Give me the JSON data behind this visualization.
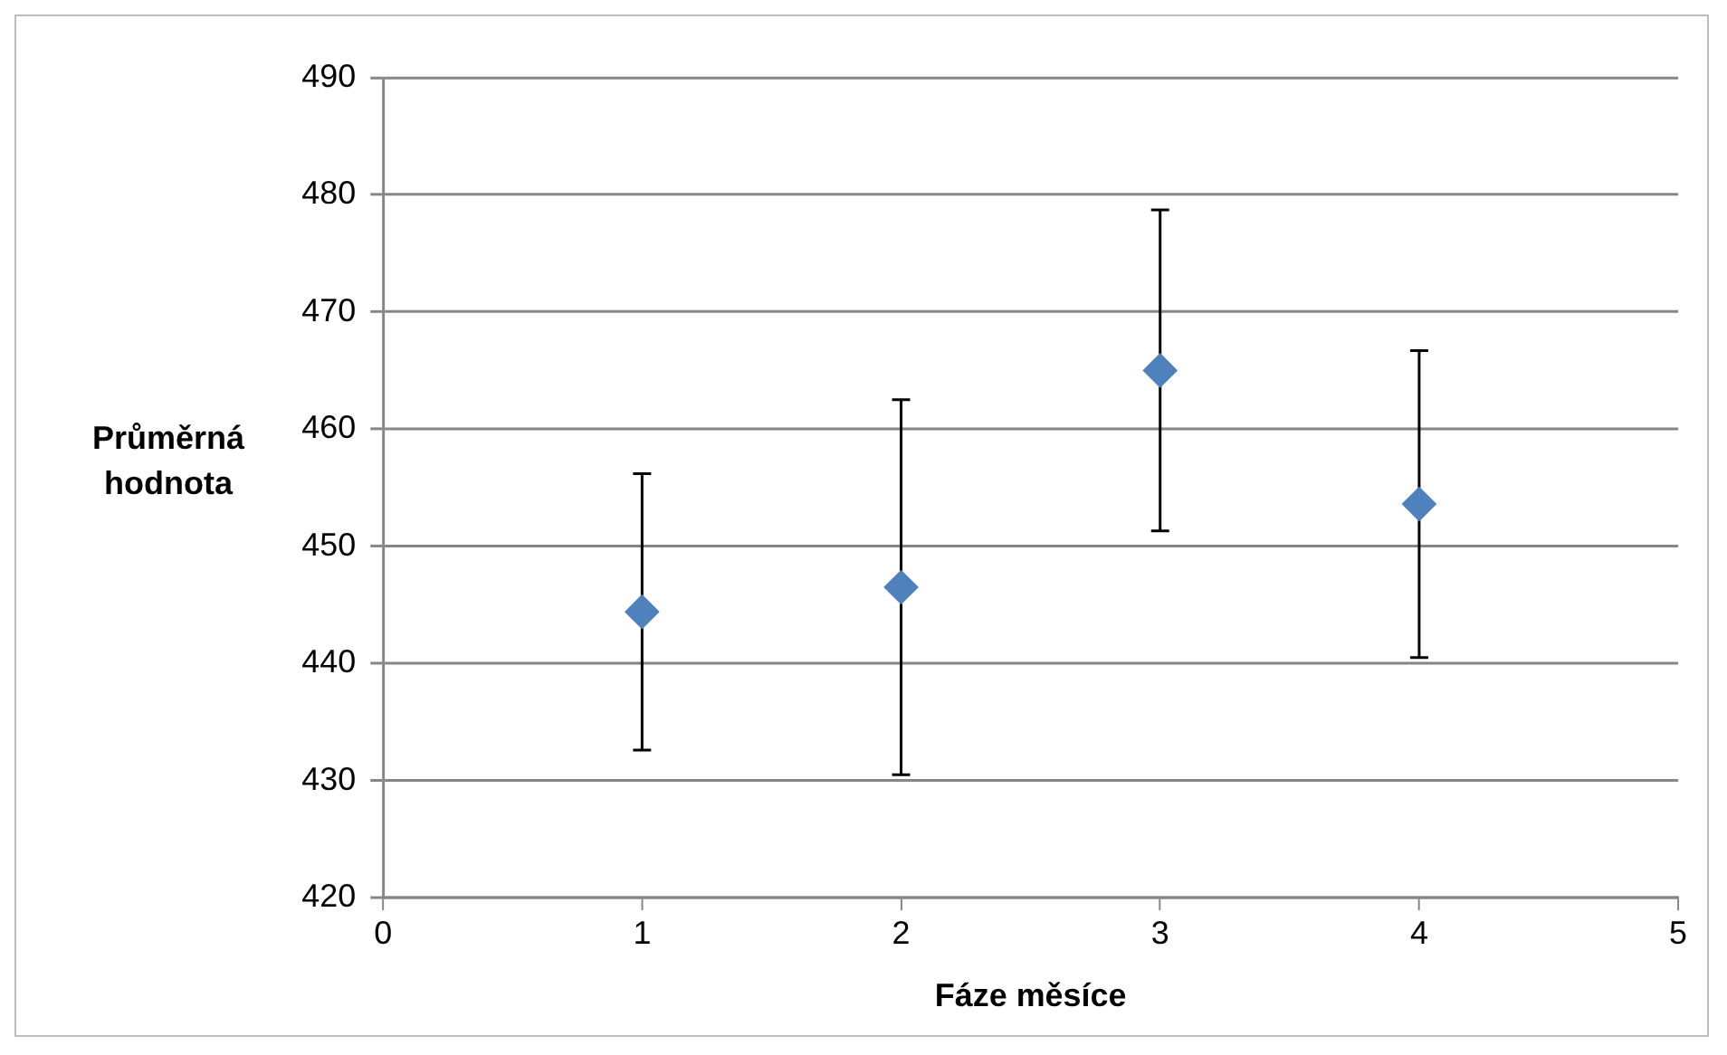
{
  "chart_data": {
    "type": "scatter",
    "xlabel": "Fáze měsíce",
    "ylabel": "Průměrná hodnota",
    "x": [
      1,
      2,
      3,
      4
    ],
    "series": [
      {
        "color": "#4f81bd",
        "values": [
          444.4,
          446.5,
          465.0,
          453.6
        ],
        "errors": [
          11.8,
          16,
          13.7,
          13.1
        ]
      }
    ],
    "xlim": [
      0,
      5
    ],
    "xticks": [
      0,
      1,
      2,
      3,
      4,
      5
    ],
    "ylim": [
      420,
      490
    ],
    "yticks": [
      420,
      430,
      440,
      450,
      460,
      470,
      480,
      490
    ],
    "grid": "y",
    "legend": false,
    "marker": "diamond"
  }
}
